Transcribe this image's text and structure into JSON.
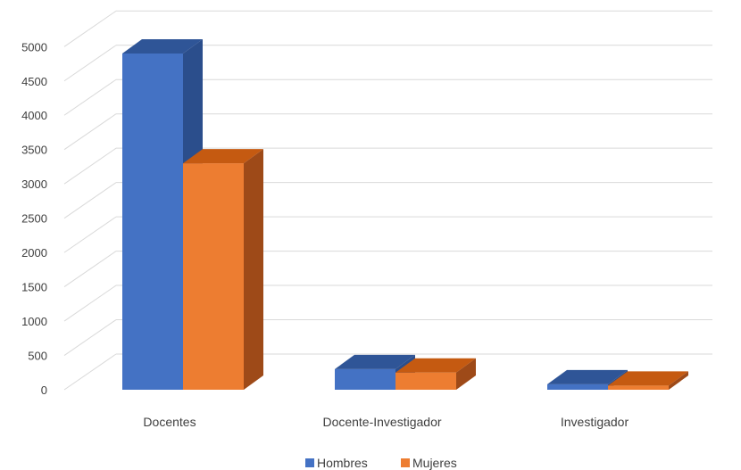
{
  "chart_data": {
    "type": "bar",
    "style": "3d-clustered-column",
    "categories": [
      "Docentes",
      "Docente-Investigador",
      "Investigador"
    ],
    "series": [
      {
        "name": "Hombres",
        "values": [
          4900,
          300,
          80
        ],
        "color": "#4472C4",
        "top_color": "#2F5597",
        "side_color": "#2B4E8C"
      },
      {
        "name": "Mujeres",
        "values": [
          3300,
          250,
          60
        ],
        "color": "#ED7D31",
        "top_color": "#C55A11",
        "side_color": "#9E4A18"
      }
    ],
    "y_ticks": [
      "0",
      "500",
      "1000",
      "1500",
      "2000",
      "2500",
      "3000",
      "3500",
      "4000",
      "4500",
      "5000"
    ],
    "ylim": [
      0,
      5000
    ],
    "grid": true,
    "grid_color": "#D9D9D9",
    "legend_position": "bottom"
  }
}
